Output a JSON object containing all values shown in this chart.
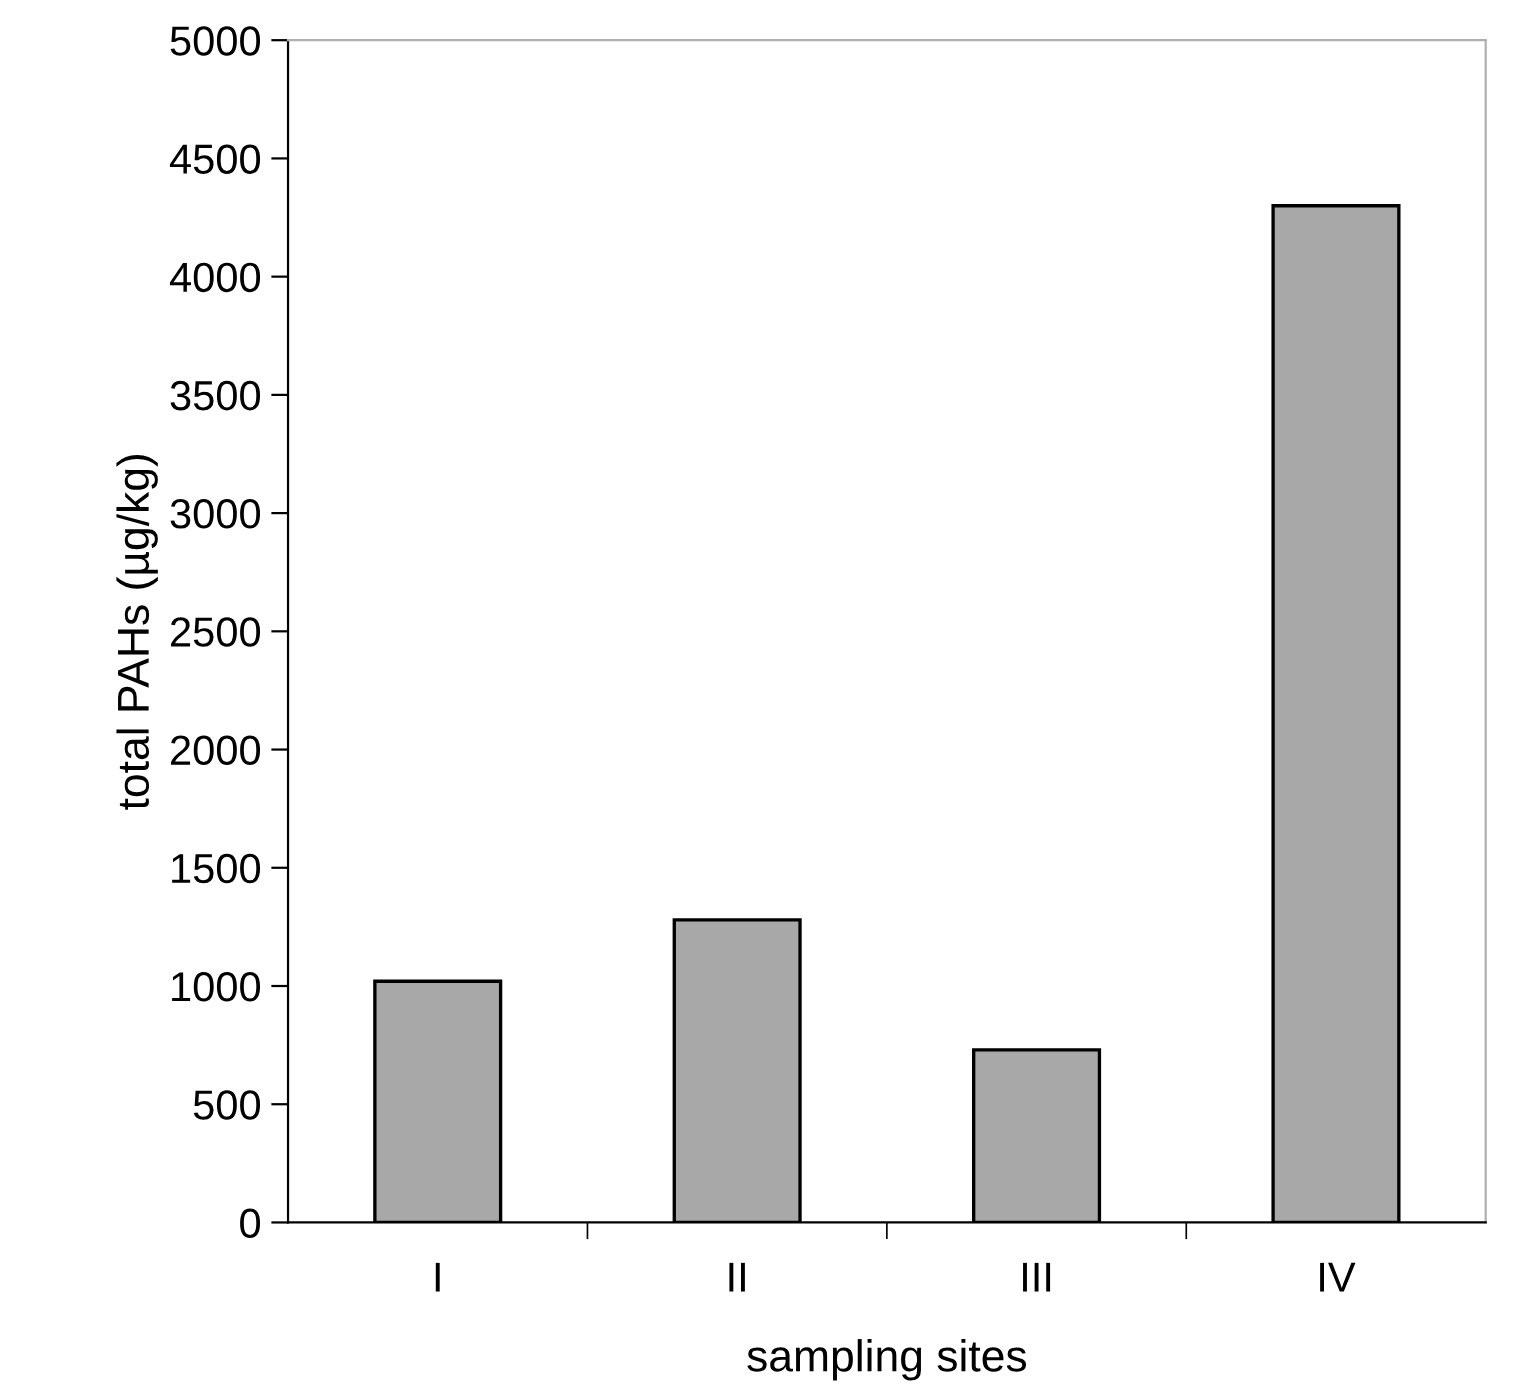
{
  "chart_data": {
    "type": "bar",
    "xlabel": "sampling sites",
    "ylabel": "total PAHs (µg/kg)",
    "categories": [
      "I",
      "II",
      "III",
      "IV"
    ],
    "values": [
      1020,
      1280,
      730,
      4300
    ],
    "color": "#a8a8a8",
    "ylim": [
      0,
      5000
    ],
    "yticks": [
      0,
      500,
      1000,
      1500,
      2000,
      2500,
      3000,
      3500,
      4000,
      4500,
      5000
    ],
    "grid": false
  }
}
